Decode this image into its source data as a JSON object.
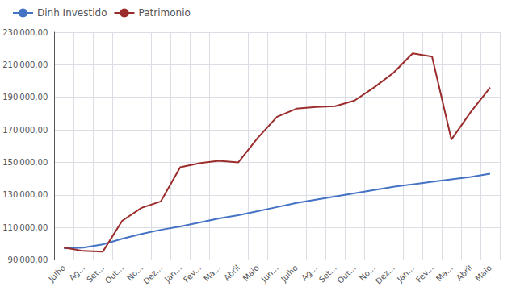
{
  "chart_data": {
    "type": "line",
    "categories": [
      "Julho",
      "Ag...",
      "Set...",
      "Out...",
      "No...",
      "Dez...",
      "Jan...",
      "Fev...",
      "Ma...",
      "Abril",
      "Maio",
      "Jun...",
      "Julho",
      "Ag...",
      "Set...",
      "Out...",
      "No...",
      "Dez...",
      "Jan...",
      "Fev...",
      "Ma...",
      "Abril",
      "Maio"
    ],
    "series": [
      {
        "name": "Dinh Investido",
        "color": "#4472C4",
        "values": [
          97000,
          97500,
          99500,
          103000,
          106000,
          108500,
          110500,
          113000,
          115500,
          117500,
          120000,
          122500,
          125000,
          127000,
          129000,
          131000,
          133000,
          135000,
          136500,
          138000,
          139500,
          141000,
          143000
        ]
      },
      {
        "name": "Patrimonio",
        "color": "#9B2C2C",
        "values": [
          97500,
          95500,
          95000,
          114000,
          122000,
          126000,
          147000,
          149500,
          151000,
          150000,
          165000,
          178000,
          183000,
          184000,
          184500,
          188000,
          196000,
          205000,
          217000,
          215000,
          164000,
          181000,
          196000
        ]
      }
    ],
    "ylim": [
      90000,
      230000
    ],
    "yticks": [
      {
        "value": 90000,
        "label": "90 000,00"
      },
      {
        "value": 110000,
        "label": "110 000,00"
      },
      {
        "value": 130000,
        "label": "130 000,00"
      },
      {
        "value": 150000,
        "label": "150 000,00"
      },
      {
        "value": 170000,
        "label": "170 000,00"
      },
      {
        "value": 190000,
        "label": "190 000,00"
      },
      {
        "value": 210000,
        "label": "210 000,00"
      },
      {
        "value": 230000,
        "label": "230 000,00"
      }
    ],
    "grid": true,
    "legend": "upper left"
  }
}
